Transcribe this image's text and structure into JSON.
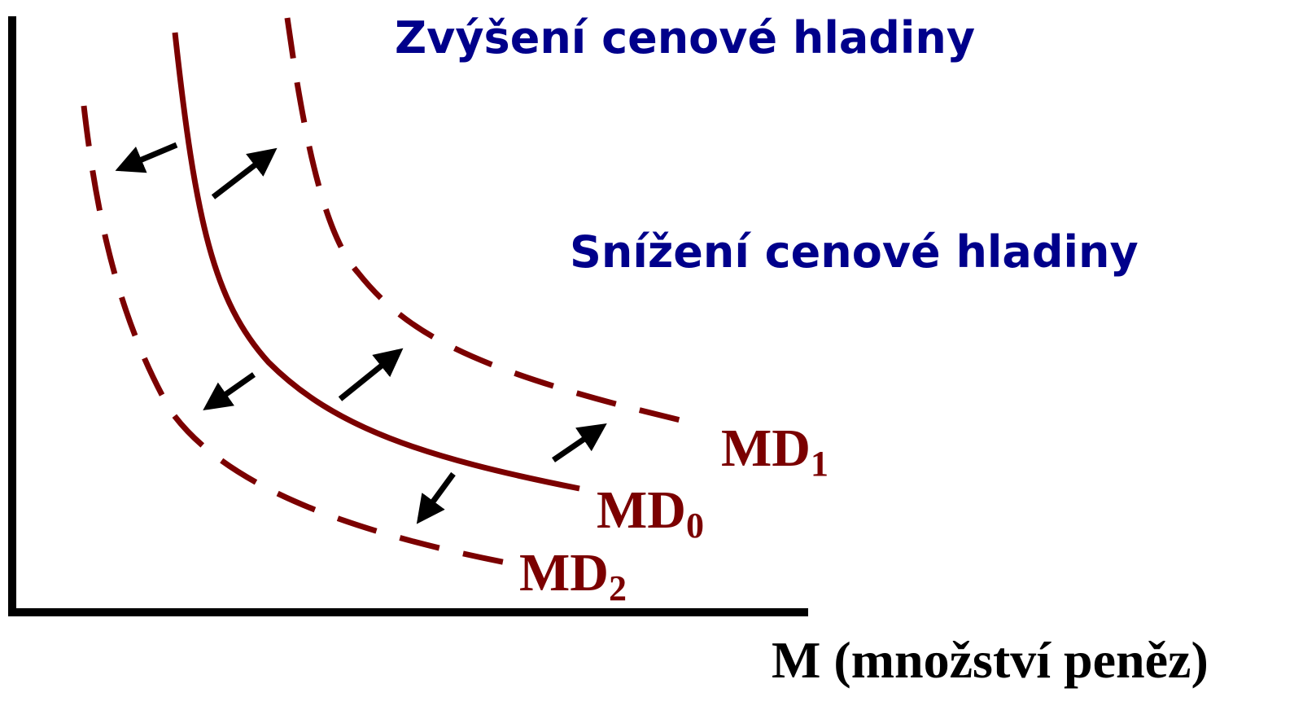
{
  "labels": {
    "increase": "Zvýšení cenové hladiny",
    "decrease": "Snížení cenové hladiny"
  },
  "curves": [
    {
      "label": "MD",
      "subscript": "1"
    },
    {
      "label": "MD",
      "subscript": "0"
    },
    {
      "label": "MD",
      "subscript": "2"
    }
  ],
  "x_axis_label": "M (množství peněz)"
}
